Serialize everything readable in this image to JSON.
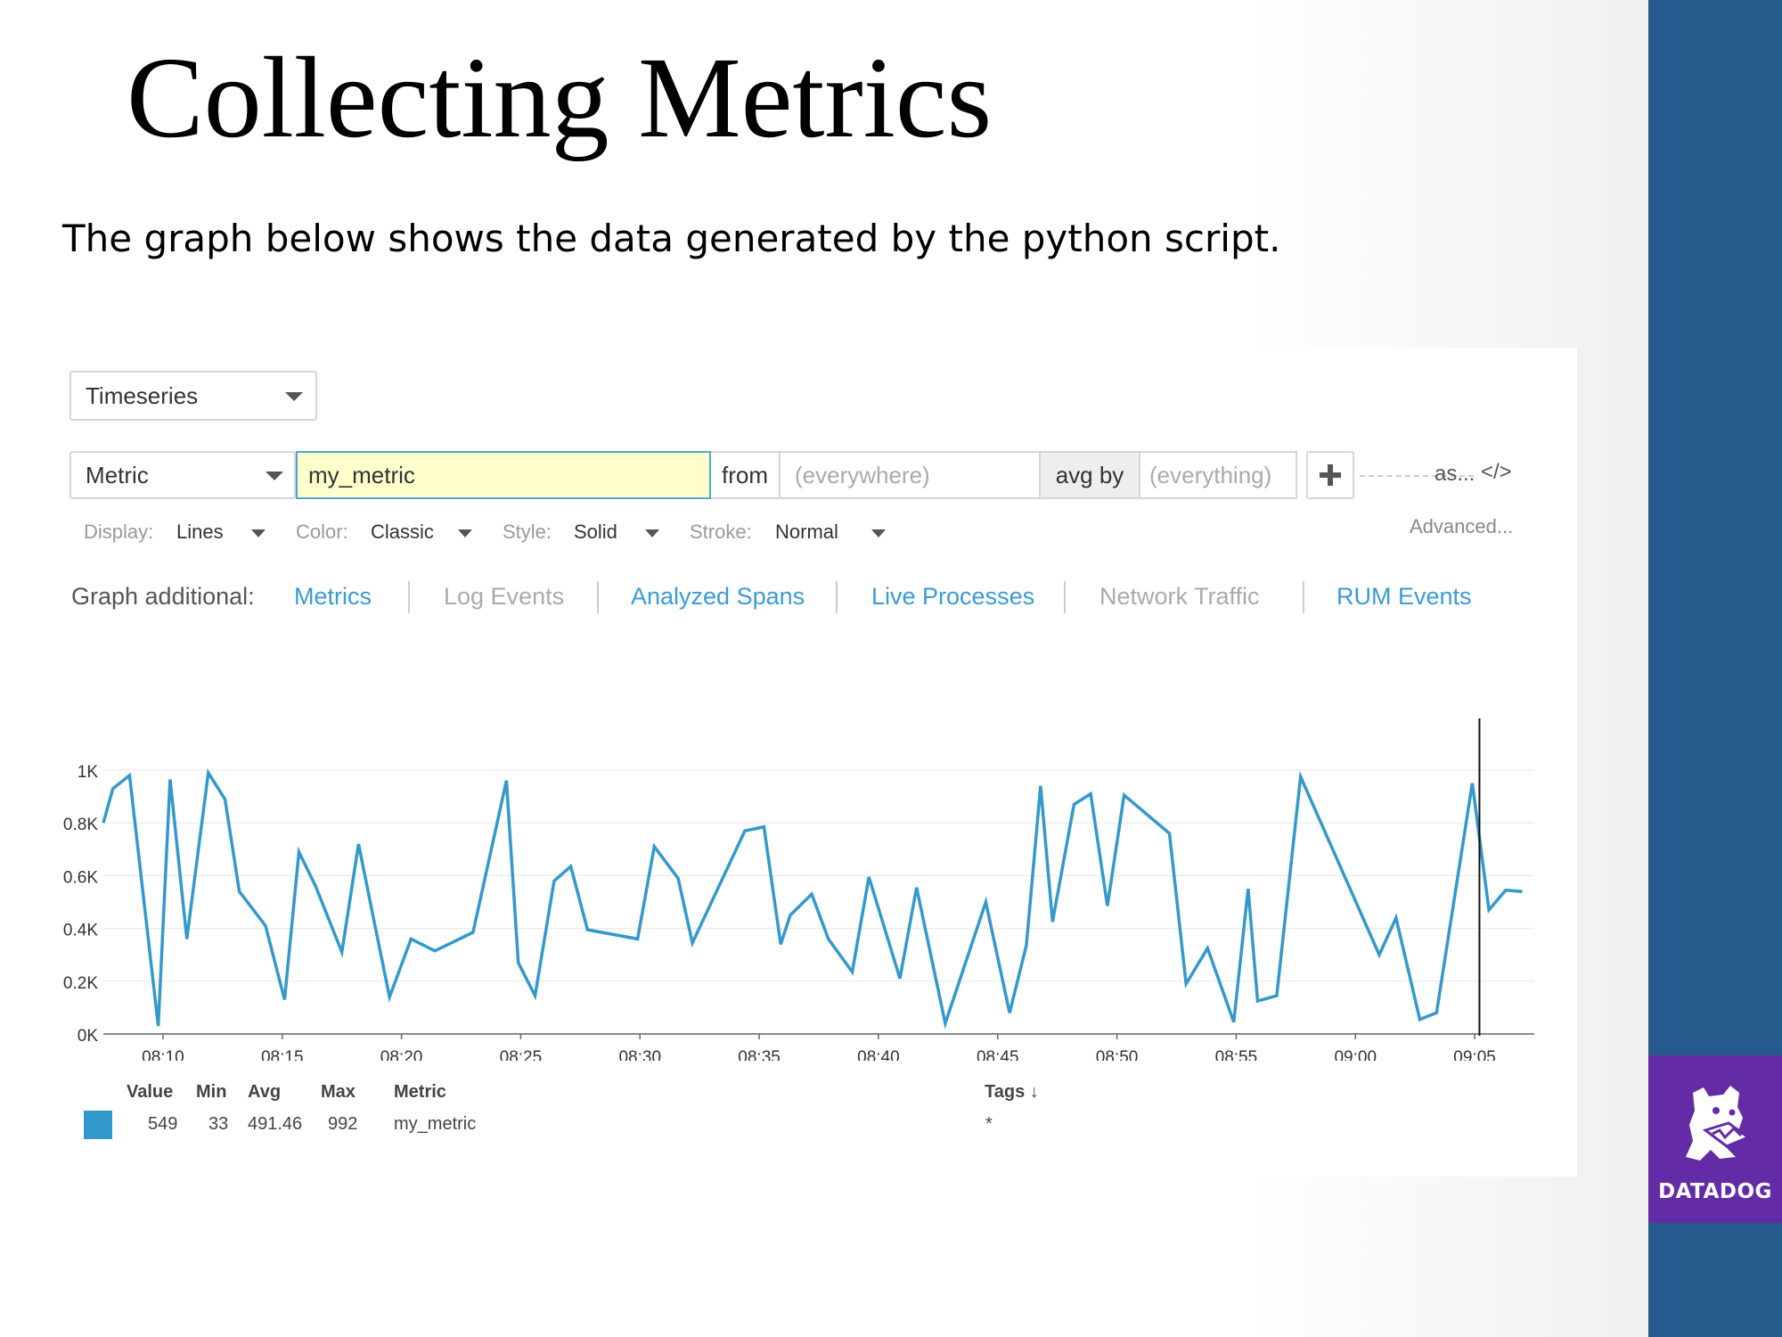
{
  "slide": {
    "title": "Collecting Metrics",
    "subtitle": "The graph below shows the data generated by the python script.",
    "logo_text": "DATADOG"
  },
  "editor": {
    "viz_type": "Timeseries",
    "source_type": "Metric",
    "metric": "my_metric",
    "from_label": "from",
    "from_placeholder": "(everywhere)",
    "avgby_label": "avg by",
    "avgby_placeholder": "(everything)",
    "as_label": "as...",
    "code_label": "</>",
    "advanced_label": "Advanced...",
    "options": {
      "display_label": "Display:",
      "display_value": "Lines",
      "color_label": "Color:",
      "color_value": "Classic",
      "style_label": "Style:",
      "style_value": "Solid",
      "stroke_label": "Stroke:",
      "stroke_value": "Normal"
    },
    "graph_additional": {
      "label": "Graph additional:",
      "items": [
        {
          "label": "Metrics",
          "active": true
        },
        {
          "label": "Log Events",
          "active": false
        },
        {
          "label": "Analyzed Spans",
          "active": true
        },
        {
          "label": "Live Processes",
          "active": true
        },
        {
          "label": "Network Traffic",
          "active": false
        },
        {
          "label": "RUM Events",
          "active": true
        }
      ]
    }
  },
  "chart_data": {
    "type": "line",
    "ylim": [
      0,
      1000
    ],
    "y_ticks": [
      0,
      200,
      400,
      600,
      800,
      1000
    ],
    "y_tick_labels": [
      "0K",
      "0.2K",
      "0.4K",
      "0.6K",
      "0.8K",
      "1K"
    ],
    "xlim": [
      "08:07.5",
      "09:07.5"
    ],
    "x_ticks": [
      "08:10",
      "08:15",
      "08:20",
      "08:25",
      "08:30",
      "08:35",
      "08:40",
      "08:45",
      "08:50",
      "08:55",
      "09:00",
      "09:05"
    ],
    "cursor_x": "09:05.2",
    "grid": true,
    "series": [
      {
        "name": "my_metric",
        "color": "#3399cc",
        "x": [
          "08:07.5",
          "08:07.9",
          "08:08.6",
          "08:09.8",
          "08:10.3",
          "08:11.0",
          "08:11.9",
          "08:12.6",
          "08:13.2",
          "08:14.3",
          "08:15.1",
          "08:15.7",
          "08:16.4",
          "08:17.5",
          "08:18.2",
          "08:18.8",
          "08:19.5",
          "08:20.4",
          "08:21.4",
          "08:23.0",
          "08:24.4",
          "08:24.9",
          "08:25.6",
          "08:26.4",
          "08:27.1",
          "08:27.8",
          "08:29.9",
          "08:30.6",
          "08:31.6",
          "08:32.2",
          "08:34.4",
          "08:35.2",
          "08:35.9",
          "08:36.3",
          "08:37.2",
          "08:37.9",
          "08:38.9",
          "08:39.6",
          "08:40.9",
          "08:41.6",
          "08:42.8",
          "08:44.5",
          "08:45.5",
          "08:46.2",
          "08:46.8",
          "08:47.3",
          "08:48.2",
          "08:48.9",
          "08:49.6",
          "08:50.3",
          "08:52.2",
          "08:52.9",
          "08:53.8",
          "08:54.9",
          "08:55.5",
          "08:55.9",
          "08:56.7",
          "08:57.7",
          "09:01.0",
          "09:01.7",
          "09:02.7",
          "09:03.4",
          "09:04.9",
          "09:05.6",
          "09:06.3",
          "09:07.0"
        ],
        "values": [
          800,
          930,
          980,
          30,
          965,
          360,
          990,
          890,
          540,
          410,
          130,
          690,
          560,
          310,
          720,
          450,
          140,
          360,
          315,
          385,
          960,
          270,
          145,
          580,
          635,
          395,
          360,
          710,
          590,
          345,
          770,
          785,
          340,
          450,
          530,
          360,
          235,
          595,
          210,
          555,
          40,
          500,
          80,
          335,
          940,
          425,
          870,
          910,
          485,
          905,
          760,
          190,
          325,
          45,
          550,
          125,
          145,
          975,
          300,
          440,
          55,
          80,
          950,
          470,
          545,
          540
        ]
      }
    ]
  },
  "legend": {
    "headers": {
      "value": "Value",
      "min": "Min",
      "avg": "Avg",
      "max": "Max",
      "metric": "Metric",
      "tags": "Tags ↓"
    },
    "row": {
      "color": "#3399cc",
      "value": "549",
      "min": "33",
      "avg": "491.46",
      "max": "992",
      "metric": "my_metric",
      "tags": "*"
    }
  }
}
